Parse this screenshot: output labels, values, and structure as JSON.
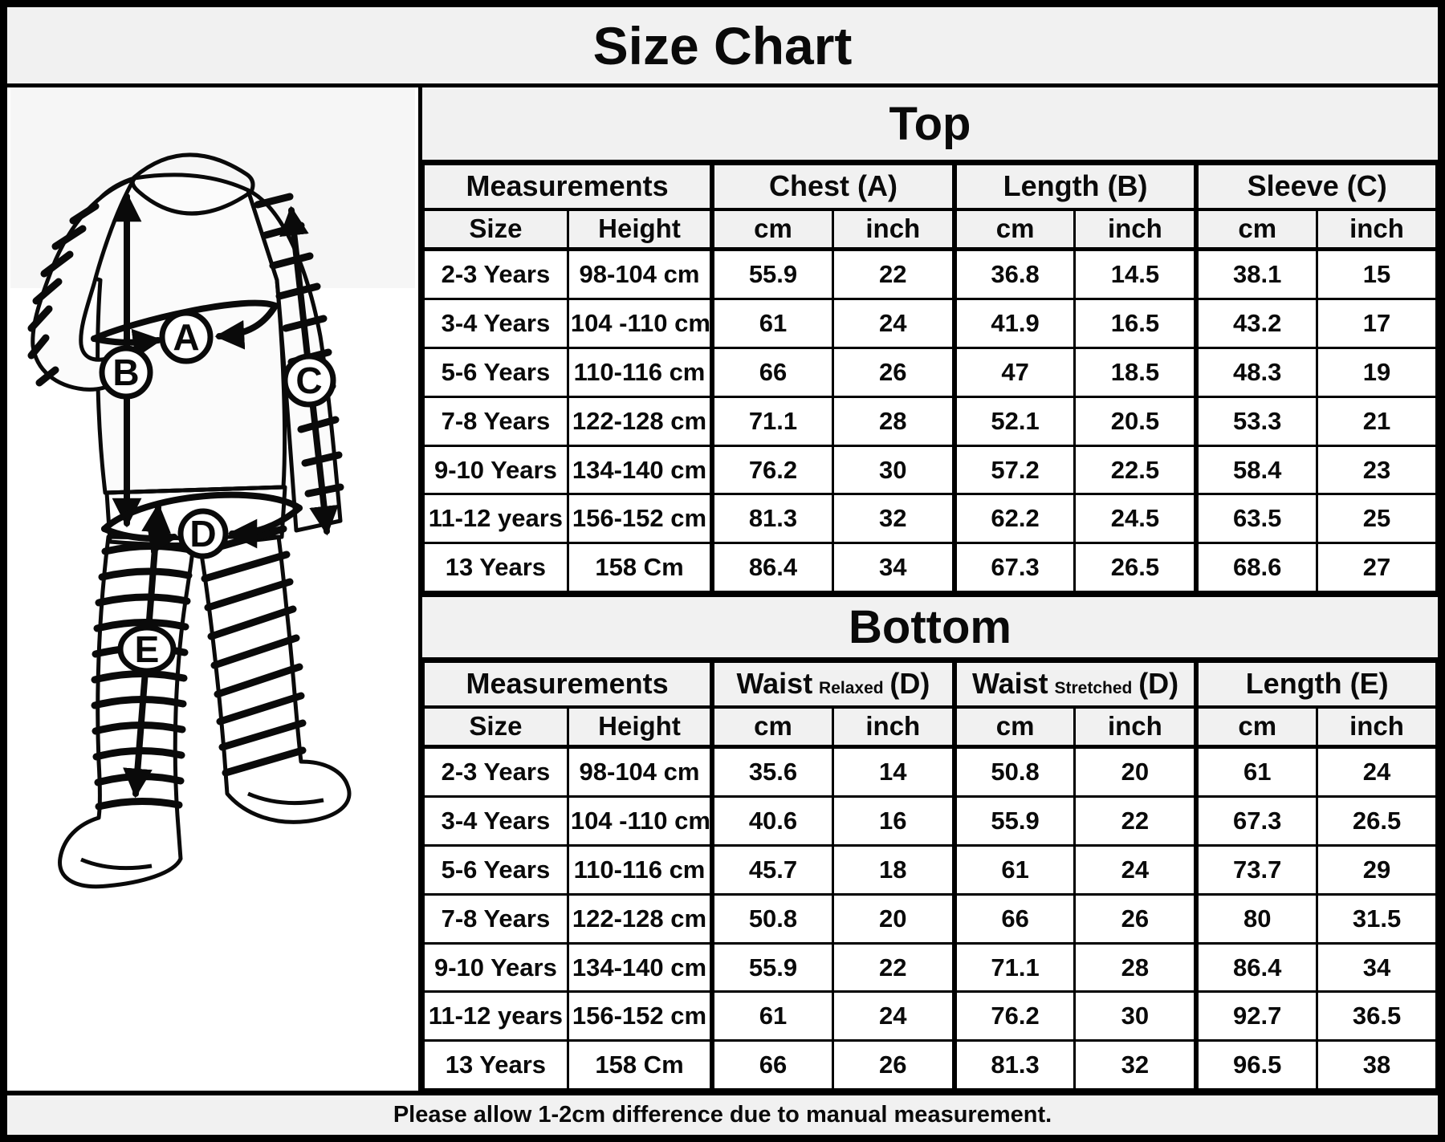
{
  "title": "Size Chart",
  "footer": "Please allow 1-2cm difference due to manual measurement.",
  "colors": {
    "band_bg": "#f1f1f1",
    "border": "#000000",
    "cell_bg": "#ffffff"
  },
  "figure": {
    "description": "line-art sketch of child in striped pajama set with measurement markers",
    "markers": [
      "A",
      "B",
      "C",
      "D",
      "E"
    ]
  },
  "top_section": {
    "title": "Top",
    "group_headers": [
      {
        "main": "Measurements",
        "qualifier": "",
        "suffix": ""
      },
      {
        "main": "Chest",
        "qualifier": "",
        "suffix": "(A)"
      },
      {
        "main": "Length",
        "qualifier": "",
        "suffix": "(B)"
      },
      {
        "main": "Sleeve",
        "qualifier": "",
        "suffix": "(C)"
      }
    ],
    "sub_headers": [
      "Size",
      "Height",
      "cm",
      "inch",
      "cm",
      "inch",
      "cm",
      "inch"
    ],
    "rows": [
      [
        "2-3 Years",
        "98-104 cm",
        "55.9",
        "22",
        "36.8",
        "14.5",
        "38.1",
        "15"
      ],
      [
        "3-4 Years",
        "104 -110 cm",
        "61",
        "24",
        "41.9",
        "16.5",
        "43.2",
        "17"
      ],
      [
        "5-6 Years",
        "110-116 cm",
        "66",
        "26",
        "47",
        "18.5",
        "48.3",
        "19"
      ],
      [
        "7-8 Years",
        "122-128 cm",
        "71.1",
        "28",
        "52.1",
        "20.5",
        "53.3",
        "21"
      ],
      [
        "9-10 Years",
        "134-140 cm",
        "76.2",
        "30",
        "57.2",
        "22.5",
        "58.4",
        "23"
      ],
      [
        "11-12 years",
        "156-152 cm",
        "81.3",
        "32",
        "62.2",
        "24.5",
        "63.5",
        "25"
      ],
      [
        "13 Years",
        "158 Cm",
        "86.4",
        "34",
        "67.3",
        "26.5",
        "68.6",
        "27"
      ]
    ]
  },
  "bottom_section": {
    "title": "Bottom",
    "group_headers": [
      {
        "main": "Measurements",
        "qualifier": "",
        "suffix": ""
      },
      {
        "main": "Waist",
        "qualifier": "Relaxed",
        "suffix": "(D)"
      },
      {
        "main": "Waist",
        "qualifier": "Stretched",
        "suffix": "(D)"
      },
      {
        "main": "Length",
        "qualifier": "",
        "suffix": "(E)"
      }
    ],
    "sub_headers": [
      "Size",
      "Height",
      "cm",
      "inch",
      "cm",
      "inch",
      "cm",
      "inch"
    ],
    "rows": [
      [
        "2-3 Years",
        "98-104 cm",
        "35.6",
        "14",
        "50.8",
        "20",
        "61",
        "24"
      ],
      [
        "3-4 Years",
        "104 -110 cm",
        "40.6",
        "16",
        "55.9",
        "22",
        "67.3",
        "26.5"
      ],
      [
        "5-6 Years",
        "110-116 cm",
        "45.7",
        "18",
        "61",
        "24",
        "73.7",
        "29"
      ],
      [
        "7-8 Years",
        "122-128 cm",
        "50.8",
        "20",
        "66",
        "26",
        "80",
        "31.5"
      ],
      [
        "9-10 Years",
        "134-140 cm",
        "55.9",
        "22",
        "71.1",
        "28",
        "86.4",
        "34"
      ],
      [
        "11-12 years",
        "156-152 cm",
        "61",
        "24",
        "76.2",
        "30",
        "92.7",
        "36.5"
      ],
      [
        "13 Years",
        "158 Cm",
        "66",
        "26",
        "81.3",
        "32",
        "96.5",
        "38"
      ]
    ]
  }
}
